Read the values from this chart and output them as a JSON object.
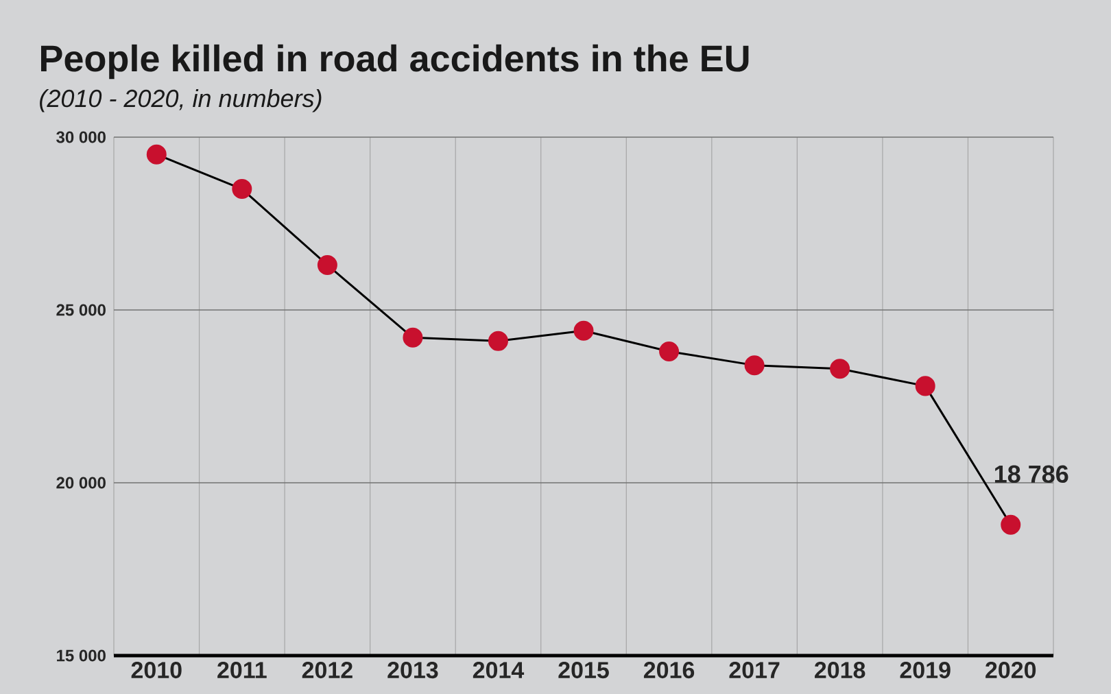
{
  "chart_data": {
    "type": "line",
    "title": "People killed in road accidents in the EU",
    "subtitle": "(2010 - 2020, in numbers)",
    "categories": [
      "2010",
      "2011",
      "2012",
      "2013",
      "2014",
      "2015",
      "2016",
      "2017",
      "2018",
      "2019",
      "2020"
    ],
    "values": [
      29500,
      28500,
      26300,
      24200,
      24100,
      24400,
      23800,
      23400,
      23300,
      22800,
      18786
    ],
    "color": "#c8102e",
    "marker": "circle",
    "value_labels": [
      null,
      null,
      null,
      null,
      null,
      null,
      null,
      null,
      null,
      null,
      "18 786"
    ],
    "ylim": [
      15000,
      30000
    ],
    "yticks": [
      {
        "value": 15000,
        "label": "15 000"
      },
      {
        "value": 20000,
        "label": "20 000"
      },
      {
        "value": 25000,
        "label": "25 000"
      },
      {
        "value": 30000,
        "label": "30 000"
      }
    ],
    "grid": true
  }
}
